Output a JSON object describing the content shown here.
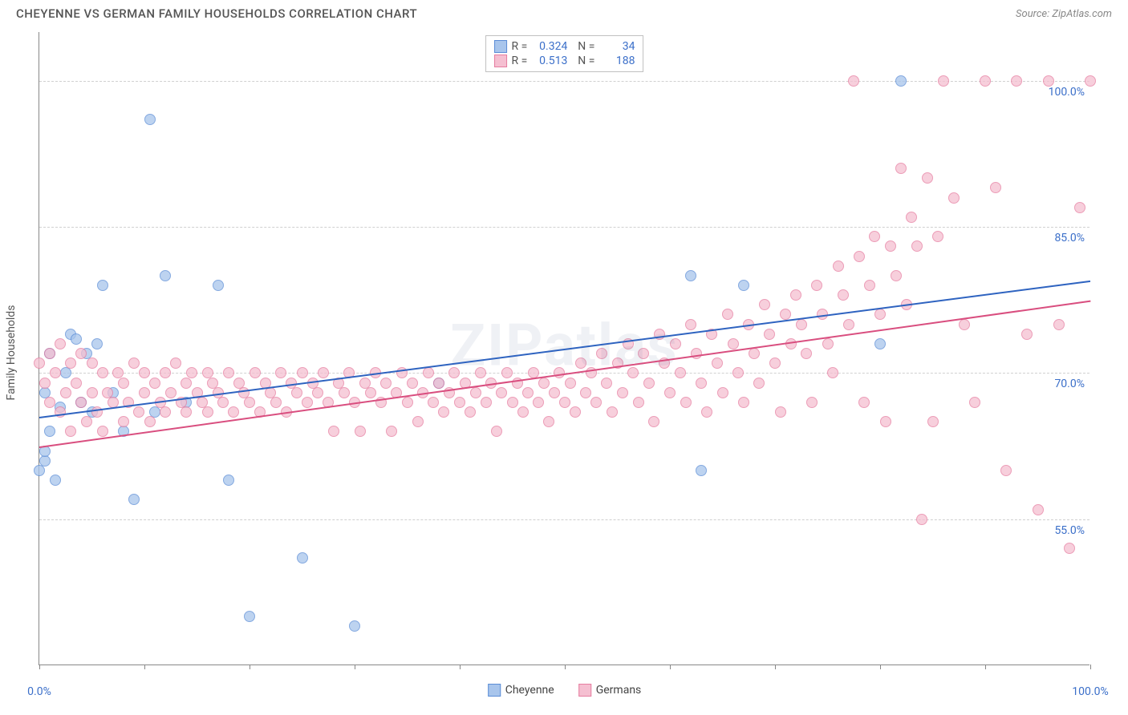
{
  "header": {
    "title": "CHEYENNE VS GERMAN FAMILY HOUSEHOLDS CORRELATION CHART",
    "source": "Source: ZipAtlas.com"
  },
  "watermark": "ZIPatlas",
  "chart": {
    "type": "scatter",
    "y_axis_title": "Family Households",
    "xlim": [
      0,
      100
    ],
    "ylim": [
      40,
      105
    ],
    "y_ticks": [
      55.0,
      70.0,
      85.0,
      100.0
    ],
    "y_tick_labels": [
      "55.0%",
      "70.0%",
      "85.0%",
      "100.0%"
    ],
    "x_ticks": [
      0,
      10,
      20,
      30,
      40,
      50,
      60,
      70,
      80,
      90,
      100
    ],
    "x_tick_labels_shown": {
      "0": "0.0%",
      "100": "100.0%"
    },
    "label_color": "#3b6fc9",
    "grid_color": "#d0d0d0",
    "axis_color": "#888888",
    "background_color": "#ffffff",
    "point_radius": 7,
    "point_border_width": 1.5,
    "point_fill_opacity": 0.25,
    "series": [
      {
        "name": "Cheyenne",
        "color_border": "#5b8dd6",
        "color_fill": "#a8c5ec",
        "R": "0.324",
        "N": "34",
        "trend": {
          "x1": 0,
          "y1": 65.5,
          "x2": 100,
          "y2": 79.5,
          "color": "#2e63c0",
          "width": 2
        },
        "points": [
          [
            0,
            60
          ],
          [
            0.5,
            61
          ],
          [
            0.5,
            68
          ],
          [
            1,
            64
          ],
          [
            1,
            72
          ],
          [
            1.5,
            59
          ],
          [
            2,
            66.5
          ],
          [
            2.5,
            70
          ],
          [
            3,
            74
          ],
          [
            3.5,
            73.5
          ],
          [
            4,
            67
          ],
          [
            4.5,
            72
          ],
          [
            5,
            66
          ],
          [
            5.5,
            73
          ],
          [
            6,
            79
          ],
          [
            7,
            68
          ],
          [
            8,
            64
          ],
          [
            9,
            57
          ],
          [
            10.5,
            96
          ],
          [
            11,
            66
          ],
          [
            12,
            80
          ],
          [
            14,
            67
          ],
          [
            17,
            79
          ],
          [
            18,
            59
          ],
          [
            20,
            45
          ],
          [
            25,
            51
          ],
          [
            30,
            44
          ],
          [
            38,
            69
          ],
          [
            62,
            80
          ],
          [
            63,
            60
          ],
          [
            67,
            79
          ],
          [
            80,
            73
          ],
          [
            82,
            100
          ],
          [
            0.5,
            62
          ]
        ]
      },
      {
        "name": "Germans",
        "color_border": "#e67da0",
        "color_fill": "#f5bfd1",
        "R": "0.513",
        "N": "188",
        "trend": {
          "x1": 0,
          "y1": 62.5,
          "x2": 100,
          "y2": 77.5,
          "color": "#d94e7f",
          "width": 2
        },
        "points": [
          [
            0,
            71
          ],
          [
            0.5,
            69
          ],
          [
            1,
            72
          ],
          [
            1,
            67
          ],
          [
            1.5,
            70
          ],
          [
            2,
            73
          ],
          [
            2,
            66
          ],
          [
            2.5,
            68
          ],
          [
            3,
            71
          ],
          [
            3,
            64
          ],
          [
            3.5,
            69
          ],
          [
            4,
            67
          ],
          [
            4,
            72
          ],
          [
            4.5,
            65
          ],
          [
            5,
            68
          ],
          [
            5,
            71
          ],
          [
            5.5,
            66
          ],
          [
            6,
            70
          ],
          [
            6,
            64
          ],
          [
            6.5,
            68
          ],
          [
            7,
            67
          ],
          [
            7.5,
            70
          ],
          [
            8,
            65
          ],
          [
            8,
            69
          ],
          [
            8.5,
            67
          ],
          [
            9,
            71
          ],
          [
            9.5,
            66
          ],
          [
            10,
            68
          ],
          [
            10,
            70
          ],
          [
            10.5,
            65
          ],
          [
            11,
            69
          ],
          [
            11.5,
            67
          ],
          [
            12,
            70
          ],
          [
            12,
            66
          ],
          [
            12.5,
            68
          ],
          [
            13,
            71
          ],
          [
            13.5,
            67
          ],
          [
            14,
            69
          ],
          [
            14,
            66
          ],
          [
            14.5,
            70
          ],
          [
            15,
            68
          ],
          [
            15.5,
            67
          ],
          [
            16,
            70
          ],
          [
            16,
            66
          ],
          [
            16.5,
            69
          ],
          [
            17,
            68
          ],
          [
            17.5,
            67
          ],
          [
            18,
            70
          ],
          [
            18.5,
            66
          ],
          [
            19,
            69
          ],
          [
            19.5,
            68
          ],
          [
            20,
            67
          ],
          [
            20.5,
            70
          ],
          [
            21,
            66
          ],
          [
            21.5,
            69
          ],
          [
            22,
            68
          ],
          [
            22.5,
            67
          ],
          [
            23,
            70
          ],
          [
            23.5,
            66
          ],
          [
            24,
            69
          ],
          [
            24.5,
            68
          ],
          [
            25,
            70
          ],
          [
            25.5,
            67
          ],
          [
            26,
            69
          ],
          [
            26.5,
            68
          ],
          [
            27,
            70
          ],
          [
            27.5,
            67
          ],
          [
            28,
            64
          ],
          [
            28.5,
            69
          ],
          [
            29,
            68
          ],
          [
            29.5,
            70
          ],
          [
            30,
            67
          ],
          [
            30.5,
            64
          ],
          [
            31,
            69
          ],
          [
            31.5,
            68
          ],
          [
            32,
            70
          ],
          [
            32.5,
            67
          ],
          [
            33,
            69
          ],
          [
            33.5,
            64
          ],
          [
            34,
            68
          ],
          [
            34.5,
            70
          ],
          [
            35,
            67
          ],
          [
            35.5,
            69
          ],
          [
            36,
            65
          ],
          [
            36.5,
            68
          ],
          [
            37,
            70
          ],
          [
            37.5,
            67
          ],
          [
            38,
            69
          ],
          [
            38.5,
            66
          ],
          [
            39,
            68
          ],
          [
            39.5,
            70
          ],
          [
            40,
            67
          ],
          [
            40.5,
            69
          ],
          [
            41,
            66
          ],
          [
            41.5,
            68
          ],
          [
            42,
            70
          ],
          [
            42.5,
            67
          ],
          [
            43,
            69
          ],
          [
            43.5,
            64
          ],
          [
            44,
            68
          ],
          [
            44.5,
            70
          ],
          [
            45,
            67
          ],
          [
            45.5,
            69
          ],
          [
            46,
            66
          ],
          [
            46.5,
            68
          ],
          [
            47,
            70
          ],
          [
            47.5,
            67
          ],
          [
            48,
            69
          ],
          [
            48.5,
            65
          ],
          [
            49,
            68
          ],
          [
            49.5,
            70
          ],
          [
            50,
            67
          ],
          [
            50.5,
            69
          ],
          [
            51,
            66
          ],
          [
            51.5,
            71
          ],
          [
            52,
            68
          ],
          [
            52.5,
            70
          ],
          [
            53,
            67
          ],
          [
            53.5,
            72
          ],
          [
            54,
            69
          ],
          [
            54.5,
            66
          ],
          [
            55,
            71
          ],
          [
            55.5,
            68
          ],
          [
            56,
            73
          ],
          [
            56.5,
            70
          ],
          [
            57,
            67
          ],
          [
            57.5,
            72
          ],
          [
            58,
            69
          ],
          [
            58.5,
            65
          ],
          [
            59,
            74
          ],
          [
            59.5,
            71
          ],
          [
            60,
            68
          ],
          [
            60.5,
            73
          ],
          [
            61,
            70
          ],
          [
            61.5,
            67
          ],
          [
            62,
            75
          ],
          [
            62.5,
            72
          ],
          [
            63,
            69
          ],
          [
            63.5,
            66
          ],
          [
            64,
            74
          ],
          [
            64.5,
            71
          ],
          [
            65,
            68
          ],
          [
            65.5,
            76
          ],
          [
            66,
            73
          ],
          [
            66.5,
            70
          ],
          [
            67,
            67
          ],
          [
            67.5,
            75
          ],
          [
            68,
            72
          ],
          [
            68.5,
            69
          ],
          [
            69,
            77
          ],
          [
            69.5,
            74
          ],
          [
            70,
            71
          ],
          [
            70.5,
            66
          ],
          [
            71,
            76
          ],
          [
            71.5,
            73
          ],
          [
            72,
            78
          ],
          [
            72.5,
            75
          ],
          [
            73,
            72
          ],
          [
            73.5,
            67
          ],
          [
            74,
            79
          ],
          [
            74.5,
            76
          ],
          [
            75,
            73
          ],
          [
            75.5,
            70
          ],
          [
            76,
            81
          ],
          [
            76.5,
            78
          ],
          [
            77,
            75
          ],
          [
            77.5,
            100
          ],
          [
            78,
            82
          ],
          [
            78.5,
            67
          ],
          [
            79,
            79
          ],
          [
            79.5,
            84
          ],
          [
            80,
            76
          ],
          [
            80.5,
            65
          ],
          [
            81,
            83
          ],
          [
            81.5,
            80
          ],
          [
            82,
            91
          ],
          [
            82.5,
            77
          ],
          [
            83,
            86
          ],
          [
            83.5,
            83
          ],
          [
            84,
            55
          ],
          [
            84.5,
            90
          ],
          [
            85,
            65
          ],
          [
            85.5,
            84
          ],
          [
            86,
            100
          ],
          [
            87,
            88
          ],
          [
            88,
            75
          ],
          [
            89,
            67
          ],
          [
            90,
            100
          ],
          [
            91,
            89
          ],
          [
            92,
            60
          ],
          [
            93,
            100
          ],
          [
            94,
            74
          ],
          [
            95,
            56
          ],
          [
            96,
            100
          ],
          [
            97,
            75
          ],
          [
            98,
            52
          ],
          [
            99,
            87
          ],
          [
            100,
            100
          ]
        ]
      }
    ],
    "legend_bottom": [
      {
        "label": "Cheyenne",
        "swatch_fill": "#a8c5ec",
        "swatch_border": "#5b8dd6"
      },
      {
        "label": "Germans",
        "swatch_fill": "#f5bfd1",
        "swatch_border": "#e67da0"
      }
    ]
  }
}
